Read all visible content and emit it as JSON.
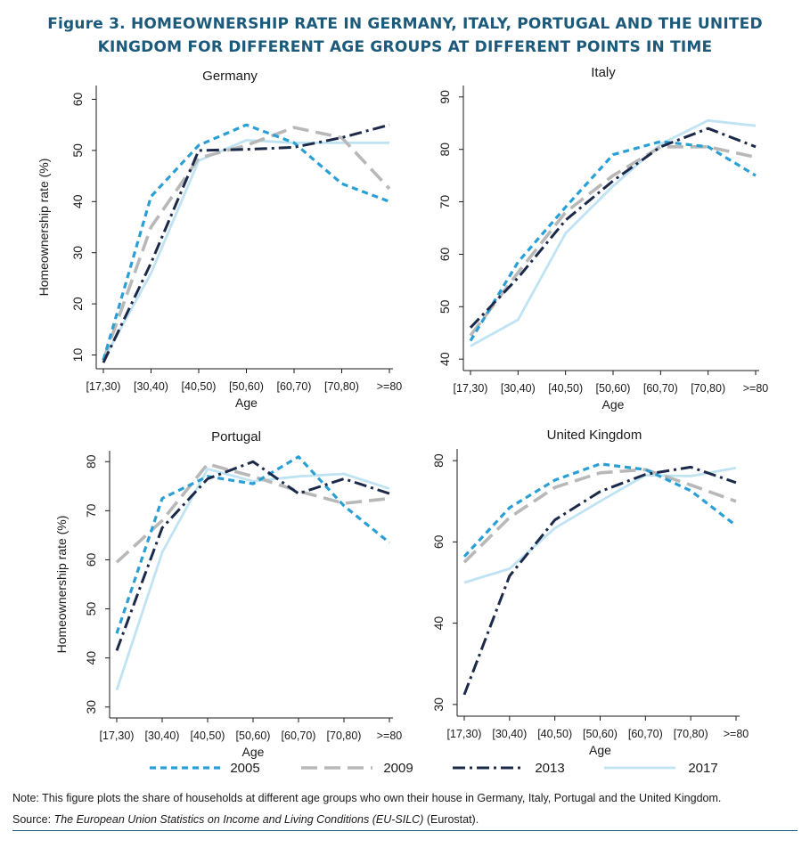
{
  "figure": {
    "title_line1": "Figure 3. HOMEOWNERSHIP RATE IN GERMANY, ITALY, PORTUGAL AND THE UNITED",
    "title_line2": "KINGDOM FOR DIFFERENT AGE GROUPS AT DIFFERENT POINTS IN TIME"
  },
  "legend": [
    {
      "name": "2005",
      "color": "#2a9fd6",
      "style": "dash"
    },
    {
      "name": "2009",
      "color": "#b8b8b8",
      "style": "longdash"
    },
    {
      "name": "2013",
      "color": "#1c2a4a",
      "style": "dashdot"
    },
    {
      "name": "2017",
      "color": "#bfe3f2",
      "style": "solid"
    }
  ],
  "footer": {
    "note": "Note: This figure plots the share of households at different age groups who own their house in Germany, Italy, Portugal and the United Kingdom.",
    "source_label": "Source: ",
    "source_title": "The European Union Statistics on Income and Living Conditions (EU-SILC)",
    "source_suffix": " (Eurostat)."
  },
  "chart_data": [
    {
      "type": "line",
      "title": "Germany",
      "xlabel": "Age",
      "ylabel": "Homeownership rate (%)",
      "categories": [
        "[17,30)",
        "[30,40)",
        "[40,50)",
        "[50,60)",
        "[60,70)",
        "[70,80)",
        ">=80"
      ],
      "yticks": [
        10,
        20,
        30,
        40,
        50,
        60
      ],
      "ylim": [
        8,
        62
      ],
      "series": [
        {
          "name": "2005",
          "values": [
            9,
            41,
            51,
            55,
            51.5,
            43.5,
            40
          ]
        },
        {
          "name": "2009",
          "values": [
            9,
            35,
            48.5,
            51,
            54.5,
            52.5,
            42.5
          ]
        },
        {
          "name": "2013",
          "values": [
            8.5,
            28,
            50,
            50.2,
            50.6,
            52.5,
            55
          ]
        },
        {
          "name": "2017",
          "values": [
            9,
            26,
            48,
            52,
            51.5,
            51.5,
            51.5
          ]
        }
      ]
    },
    {
      "type": "line",
      "title": "Italy",
      "xlabel": "Age",
      "ylabel": "",
      "categories": [
        "[17,30)",
        "[30,40)",
        "[40,50)",
        "[50,60)",
        "[60,70)",
        "[70,80)",
        ">=80"
      ],
      "yticks": [
        40,
        50,
        60,
        70,
        80,
        90
      ],
      "ylim": [
        38.5,
        91.5
      ],
      "series": [
        {
          "name": "2005",
          "values": [
            43.5,
            58.5,
            69,
            79,
            81.5,
            80.5,
            75
          ]
        },
        {
          "name": "2009",
          "values": [
            44.5,
            56.5,
            68,
            75,
            80.5,
            80.5,
            78.5
          ]
        },
        {
          "name": "2013",
          "values": [
            46,
            55.5,
            66.5,
            74,
            80.5,
            84,
            80.5
          ]
        },
        {
          "name": "2017",
          "values": [
            42.5,
            47.5,
            64,
            73,
            81,
            85.5,
            84.5
          ]
        }
      ]
    },
    {
      "type": "line",
      "title": "Portugal",
      "xlabel": "Age",
      "ylabel": "Homeownership rate (%)",
      "categories": [
        "[17,30)",
        "[30,40)",
        "[40,50)",
        "[50,60)",
        "[60,70)",
        "[70,80)",
        ">=80"
      ],
      "yticks": [
        30,
        40,
        50,
        60,
        70,
        80
      ],
      "ylim": [
        28.5,
        81.5
      ],
      "series": [
        {
          "name": "2005",
          "values": [
            45,
            72.5,
            77,
            75.5,
            81,
            71,
            63.5
          ]
        },
        {
          "name": "2009",
          "values": [
            59.5,
            68,
            79.5,
            77,
            74,
            71.5,
            72.5
          ]
        },
        {
          "name": "2013",
          "values": [
            41.5,
            66.5,
            76.5,
            80,
            73.5,
            76.5,
            73.5
          ]
        },
        {
          "name": "2017",
          "values": [
            33.5,
            61.5,
            78.5,
            76,
            77,
            77.5,
            74.5
          ]
        }
      ]
    },
    {
      "type": "line",
      "title": "United Kingdom",
      "xlabel": "Age",
      "ylabel": "",
      "categories": [
        "[17,30)",
        "[30,40)",
        "[40,50)",
        "[50,60)",
        "[60,70)",
        "[70,80)",
        ">=80"
      ],
      "yticks": [
        30,
        40,
        60,
        80
      ],
      "ytick_positions": [
        0,
        1,
        2,
        3
      ],
      "ylim": [
        -0.1,
        3.1
      ],
      "series": [
        {
          "name": "2005",
          "values": [
            1.82,
            2.42,
            2.76,
            2.96,
            2.89,
            2.63,
            2.2
          ]
        },
        {
          "name": "2009",
          "values": [
            1.75,
            2.3,
            2.67,
            2.85,
            2.89,
            2.7,
            2.5
          ]
        },
        {
          "name": "2013",
          "values": [
            0.12,
            1.58,
            2.27,
            2.62,
            2.83,
            2.92,
            2.73
          ]
        },
        {
          "name": "2017",
          "values": [
            1.5,
            1.67,
            2.17,
            2.5,
            2.82,
            2.81,
            2.91
          ]
        }
      ]
    }
  ]
}
